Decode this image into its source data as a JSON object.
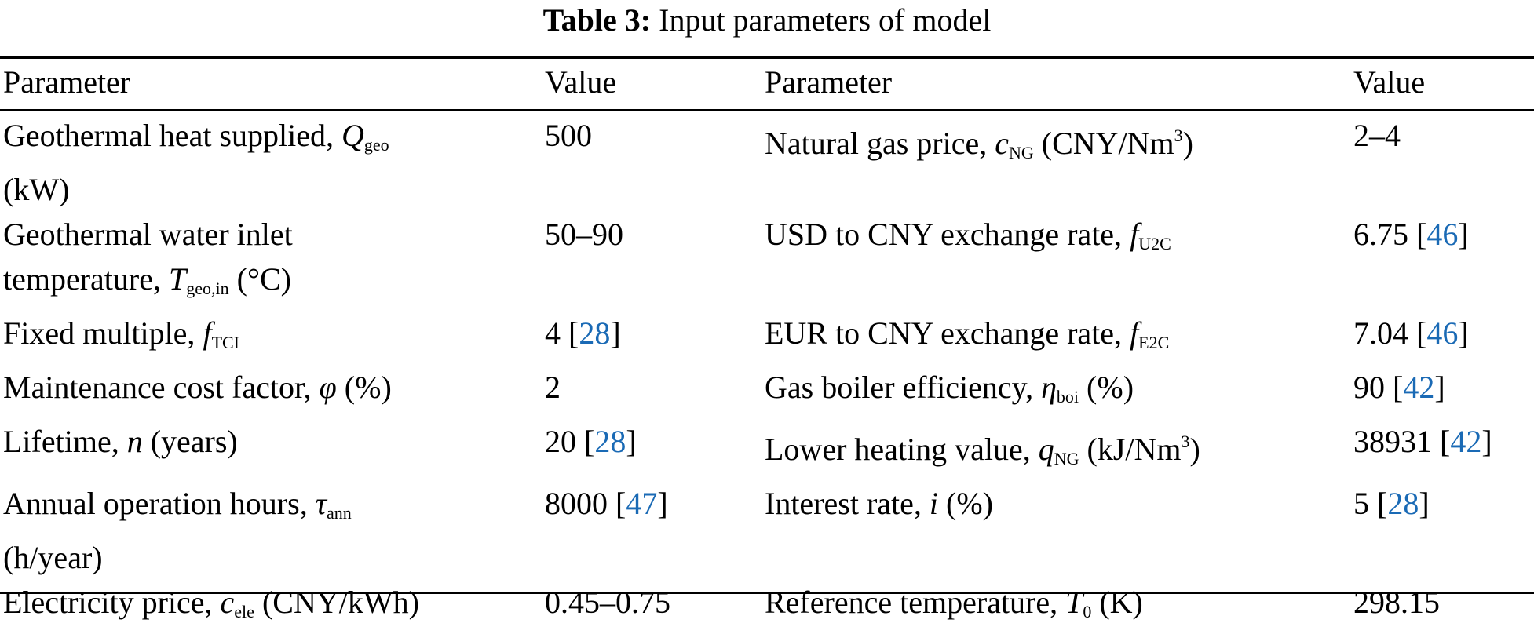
{
  "caption": {
    "label": "Table 3:",
    "title": "Input parameters of model"
  },
  "headers": [
    "Parameter",
    "Value",
    "Parameter",
    "Value"
  ],
  "rows": [
    {
      "left": {
        "text": "Geothermal heat supplied, ",
        "sym": "Q",
        "sub": "geo",
        "rest": "",
        "unit_line": "(kW)",
        "value": "500",
        "ref": ""
      },
      "right": {
        "text": "Natural gas price, ",
        "sym": "c",
        "sub": "NG",
        "rest": " (CNY/Nm",
        "sup": "3",
        "rest2": ")",
        "value": "2–4",
        "ref": ""
      }
    },
    {
      "left": {
        "text": "Geothermal water inlet",
        "unit_line_pre": "temperature, ",
        "sym": "T",
        "sub": "geo,in",
        "rest": " (°C)",
        "value": "50–90",
        "ref": ""
      },
      "right": {
        "text": "USD to CNY exchange rate, ",
        "sym": "f",
        "sub": "U2C",
        "value": "6.75",
        "ref": "46"
      }
    },
    {
      "left": {
        "text": "Fixed multiple, ",
        "sym": "f",
        "sub": "TCI",
        "value": "4",
        "ref": "28"
      },
      "right": {
        "text": "EUR to CNY exchange rate, ",
        "sym": "f",
        "sub": "E2C",
        "value": "7.04",
        "ref": "46"
      }
    },
    {
      "left": {
        "text": "Maintenance cost factor, ",
        "sym": "φ",
        "rest": " (%)",
        "value": "2",
        "ref": ""
      },
      "right": {
        "text": "Gas boiler efficiency, ",
        "sym": "η",
        "sub": "boi",
        "rest": " (%)",
        "value": "90",
        "ref": "42"
      }
    },
    {
      "left": {
        "text": "Lifetime, ",
        "sym": "n",
        "rest": " (years)",
        "value": "20",
        "ref": "28"
      },
      "right": {
        "text": "Lower heating value, ",
        "sym": "q",
        "sub": "NG",
        "rest": " (kJ/Nm",
        "sup": "3",
        "rest2": ")",
        "value": "38931",
        "ref": "42"
      }
    },
    {
      "left": {
        "text": "Annual operation hours, ",
        "sym": "τ",
        "sub": "ann",
        "unit_line": "(h/year)",
        "value": "8000",
        "ref": "47"
      },
      "right": {
        "text": "Interest rate, ",
        "sym": "i",
        "rest": " (%)",
        "value": "5",
        "ref": "28"
      }
    },
    {
      "left": {
        "text": "Electricity price, ",
        "sym": "c",
        "sub": "ele",
        "rest": " (CNY/kWh)",
        "value": "0.45–0.75",
        "ref": ""
      },
      "right": {
        "text": "Reference temperature, ",
        "sym": "T",
        "sub": "0",
        "rest": " (K)",
        "value": "298.15",
        "ref": ""
      }
    }
  ]
}
